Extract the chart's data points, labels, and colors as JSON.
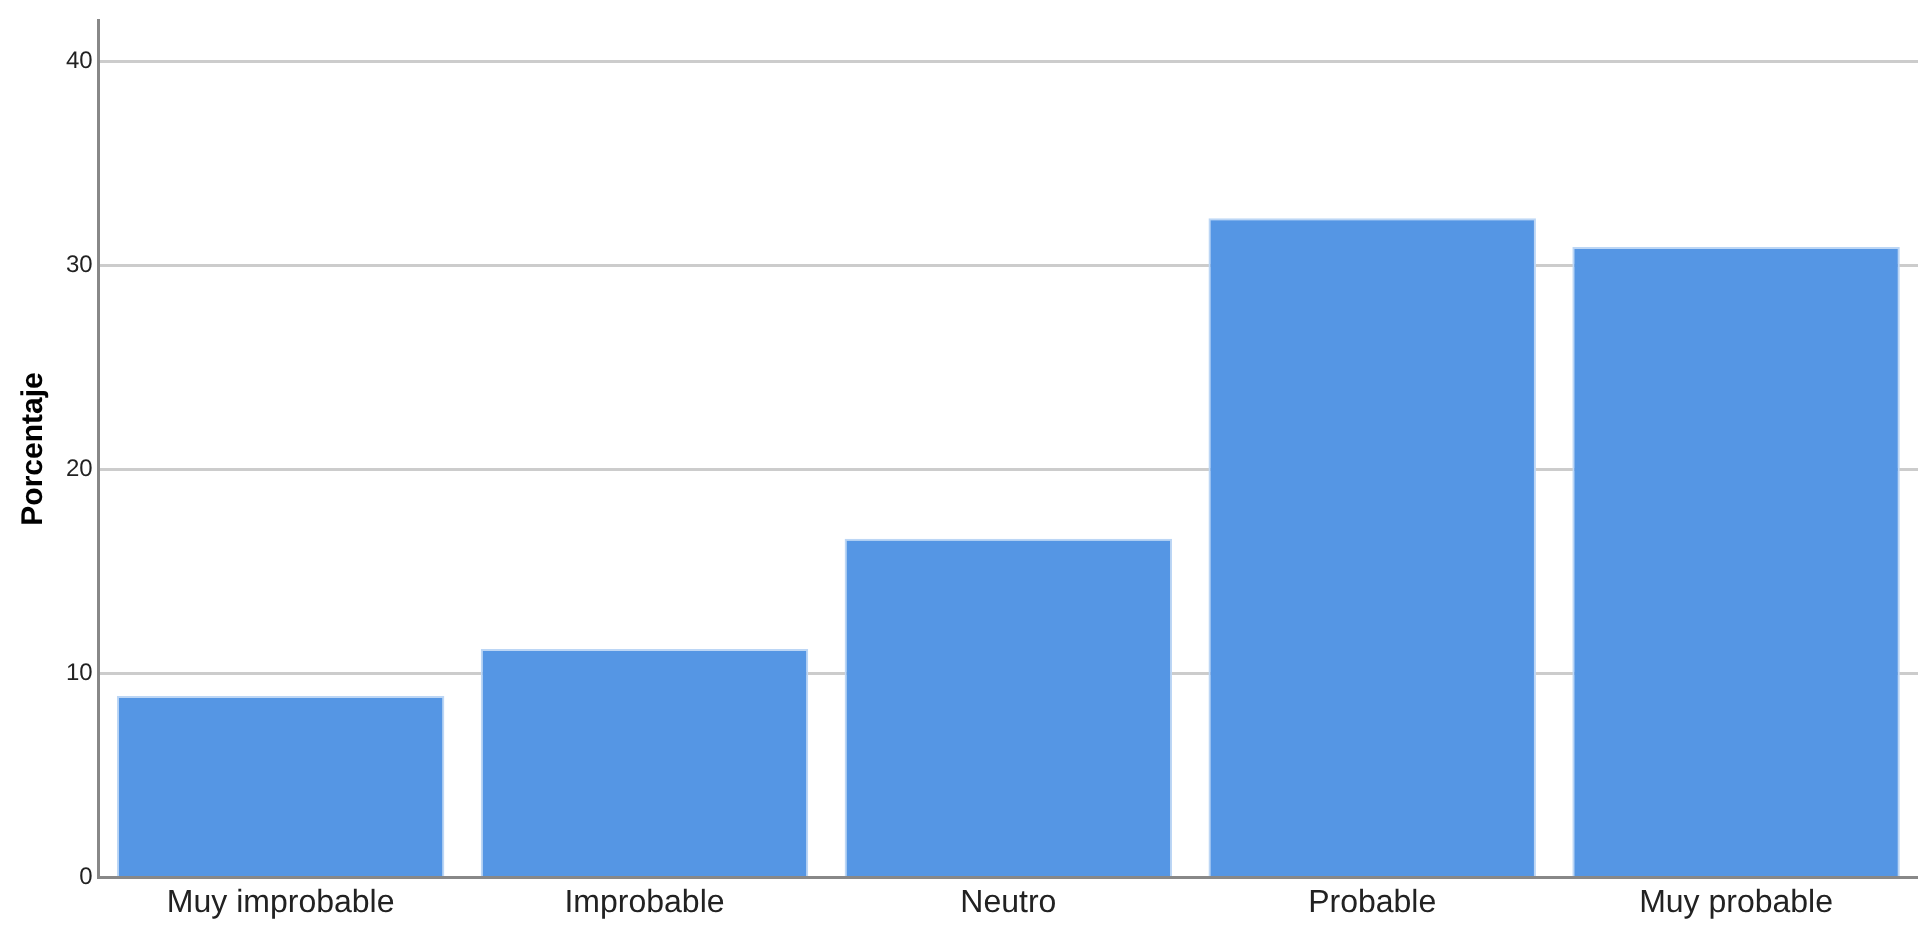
{
  "chart_data": {
    "type": "bar",
    "ylabel": "Porcentaje",
    "categories": [
      "Muy improbable",
      "Improbable",
      "Neutro",
      "Probable",
      "Muy probable"
    ],
    "values": [
      8.9,
      11.2,
      16.6,
      32.3,
      30.9
    ],
    "color": "#5596e4",
    "ylim": [
      0,
      42
    ],
    "yticks": [
      0,
      10,
      20,
      30,
      40
    ],
    "grid": "y",
    "legend": false
  }
}
